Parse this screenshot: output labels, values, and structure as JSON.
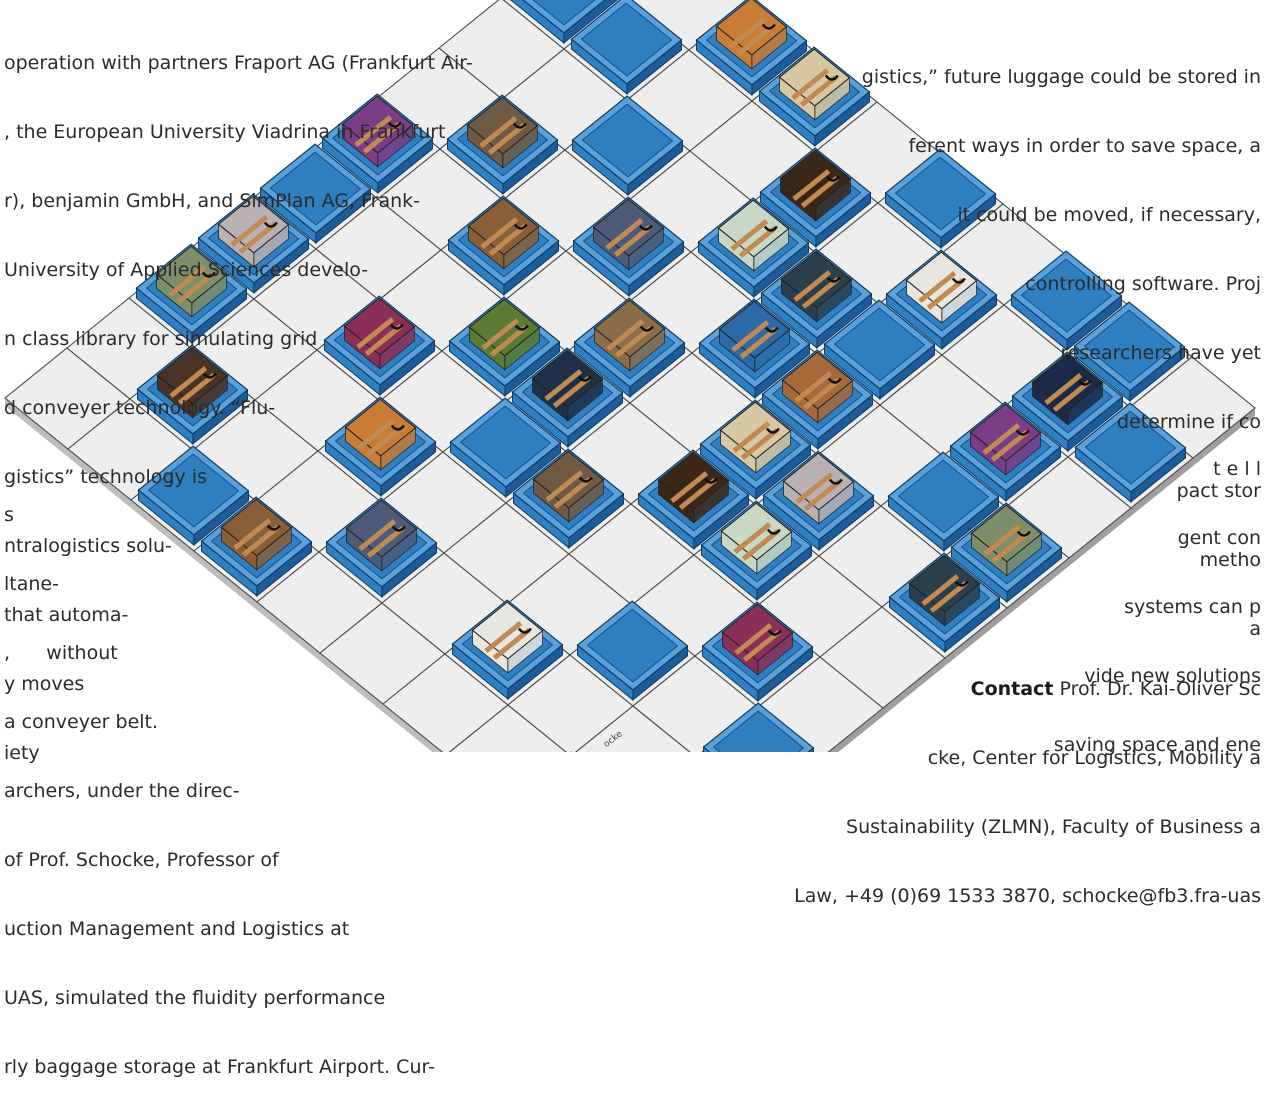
{
  "left_column": {
    "lines": [
      "operation with partners Fraport AG (Frankfurt Air-",
      ", the European University Viadrina in Frankfurt",
      "r), benjamin GmbH, and SimPlan AG, Frank-",
      "University of Applied Sciences develo-",
      "n class library for simulating grid",
      "d conveyer technology. “Flu-",
      "gistics” technology is",
      "ntralogistics solu-",
      "that automa-",
      "y moves",
      "iety",
      "s",
      "ltane-",
      ",      without",
      "a conveyer belt.",
      "archers, under the direc-",
      "of Prof. Schocke, Professor of",
      "uction Management and Logistics at",
      "UAS, simulated the fluidity performance",
      "rly baggage storage at Frankfurt Airport. Cur-"
    ]
  },
  "right_column": {
    "lines": [
      "gistics,” future luggage could be stored in",
      "ferent ways in order to save space, a",
      "it could be moved, if necessary,",
      "controlling software. Proj",
      "researchers have yet",
      "determine if co",
      "pact stor",
      "metho",
      "a",
      "t e l l",
      "gent con",
      "systems can p",
      "vide new solutions",
      "saving space and ene"
    ]
  },
  "contact": {
    "label": "Contact",
    "line1": "Prof. Dr. Kai-Oliver Sc",
    "line2": "cke, Center for Logistics, Mobility a",
    "line3": "Sustainability (ZLMN), Faculty of Business a",
    "line4": "Law, +49 (0)69 1533 3870, schocke@fb3.fra-uas"
  },
  "illustration": {
    "photo_credit": "ocke",
    "colors": {
      "tray": "#2f7fc1",
      "tray_dark": "#1d5c98",
      "tray_light": "#5aa1dc",
      "tile": "#eeeeee",
      "grid_line": "#4a4a4a",
      "strap": "#c08a52"
    },
    "suitcase_colors": [
      "#1c2a4a",
      "#c97c36",
      "#d8c7a3",
      "#7a3d86",
      "#6e5a45",
      "#3b2718",
      "#b9b1b4",
      "#8a5f38",
      "#4d5b79",
      "#c8d8c4",
      "#7c8e6a",
      "#2a3f4e",
      "#e8e6e0",
      "#8b2e58",
      "#5a7b34",
      "#8a6e4b",
      "#2c6aa8",
      "#4a3226",
      "#1e2f46",
      "#a66a3a"
    ]
  }
}
